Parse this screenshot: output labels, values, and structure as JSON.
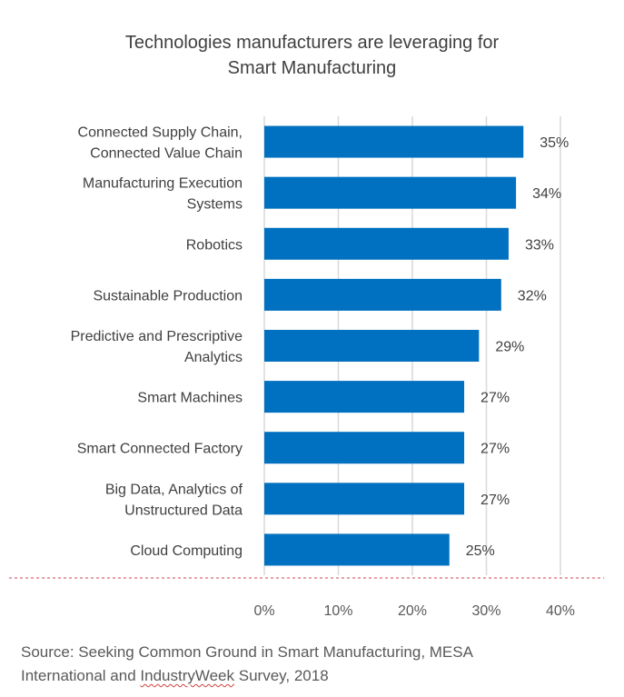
{
  "chart_data": {
    "type": "bar",
    "orientation": "horizontal",
    "title": "Technologies manufacturers are leveraging for Smart Manufacturing",
    "title_lines": [
      "Technologies manufacturers are leveraging for",
      "Smart Manufacturing"
    ],
    "categories": [
      [
        "Connected Supply Chain,",
        "Connected Value Chain"
      ],
      [
        "Manufacturing Execution",
        "Systems"
      ],
      [
        "Robotics"
      ],
      [
        "Sustainable Production"
      ],
      [
        "Predictive and Prescriptive",
        "Analytics"
      ],
      [
        "Smart Machines"
      ],
      [
        "Smart Connected Factory"
      ],
      [
        "Big Data, Analytics of",
        "Unstructured Data"
      ],
      [
        "Cloud Computing"
      ]
    ],
    "values": [
      35,
      34,
      33,
      32,
      29,
      27,
      27,
      27,
      25
    ],
    "data_labels": [
      "35%",
      "34%",
      "33%",
      "32%",
      "29%",
      "27%",
      "27%",
      "27%",
      "25%"
    ],
    "xlim": [
      0,
      40
    ],
    "x_ticks": [
      0,
      10,
      20,
      30,
      40
    ],
    "x_tick_labels": [
      "0%",
      "10%",
      "20%",
      "30%",
      "40%"
    ],
    "xlabel": "",
    "ylabel": "",
    "grid": true,
    "legend": "none",
    "bar_color": "#0070c0",
    "grid_color": "#d9d9d9"
  },
  "source": {
    "line1": "Source: Seeking Common Ground in Smart Manufacturing, MESA",
    "line2_pre": "International and ",
    "line2_flagged": "IndustryWeek",
    "line2_post": " Survey, 2018"
  }
}
